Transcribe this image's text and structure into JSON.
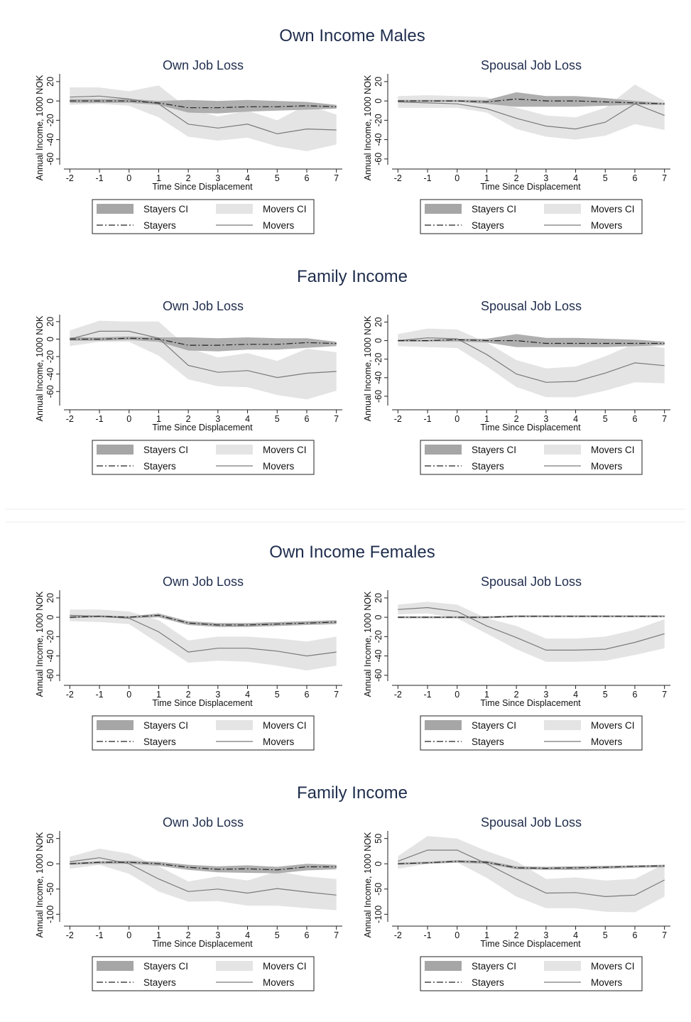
{
  "figure": {
    "group_titles": [
      "Own Income Males",
      "Family Income",
      "Own Income Females",
      "Family Income"
    ]
  },
  "legend": {
    "stayers_ci": "Stayers CI",
    "movers_ci": "Movers CI",
    "stayers": "Stayers",
    "movers": "Movers"
  },
  "colors": {
    "stayers_ci": "#a6a6a6",
    "movers_ci": "#e4e4e4",
    "stayers_line": "#222222",
    "movers_line": "#7a7a7a",
    "title": "#1f2d4d"
  },
  "chart_data": [
    {
      "type": "line",
      "group": "Own Income Males",
      "title": "Own Job Loss",
      "xlabel": "Time Since Displacement",
      "ylabel": "Annual Income, 1000 NOK",
      "x": [
        -2,
        -1,
        0,
        1,
        2,
        3,
        4,
        5,
        6,
        7
      ],
      "xlim": [
        -2.2,
        7.2
      ],
      "ylim": [
        -66,
        28
      ],
      "yticks": [
        20,
        0,
        -20,
        -40,
        -60
      ],
      "stayers": [
        0,
        0,
        0,
        -2,
        -7,
        -7,
        -6,
        -6,
        -5,
        -6
      ],
      "stayers_ci_low": [
        -2,
        -2,
        -2,
        -4,
        -12,
        -13,
        -11,
        -10,
        -9,
        -8
      ],
      "stayers_ci_high": [
        2,
        2,
        2,
        0,
        1,
        0,
        1,
        0,
        -1,
        -4
      ],
      "movers": [
        4,
        5,
        2,
        -3,
        -24,
        -28,
        -24,
        -34,
        -29,
        -30
      ],
      "movers_ci_low": [
        -4,
        -3,
        -5,
        -17,
        -37,
        -41,
        -38,
        -47,
        -52,
        -45
      ],
      "movers_ci_high": [
        14,
        14,
        10,
        16,
        -8,
        -16,
        -10,
        -20,
        -4,
        -14
      ],
      "grid": false,
      "legend_position": "bottom"
    },
    {
      "type": "line",
      "group": "Own Income Males",
      "title": "Spousal Job Loss",
      "xlabel": "Time Since Displacement",
      "ylabel": "Annual Income, 1000 NOK",
      "x": [
        -2,
        -1,
        0,
        1,
        2,
        3,
        4,
        5,
        6,
        7
      ],
      "xlim": [
        -2.2,
        7.2
      ],
      "ylim": [
        -66,
        28
      ],
      "yticks": [
        20,
        0,
        -20,
        -40,
        -60
      ],
      "stayers": [
        0,
        0,
        0,
        -1,
        2,
        0,
        0,
        -1,
        -2,
        -3
      ],
      "stayers_ci_low": [
        -1,
        -1,
        -1,
        -3,
        -6,
        -6,
        -6,
        -5,
        -4,
        -4
      ],
      "stayers_ci_high": [
        1,
        1,
        1,
        1,
        9,
        5,
        5,
        3,
        0,
        -2
      ],
      "movers": [
        -1,
        -2,
        -3,
        -8,
        -18,
        -26,
        -29,
        -22,
        -3,
        -15
      ],
      "movers_ci_low": [
        -7,
        -7,
        -7,
        -12,
        -29,
        -37,
        -40,
        -36,
        -24,
        -30
      ],
      "movers_ci_high": [
        5,
        6,
        5,
        4,
        -7,
        -15,
        -17,
        -7,
        17,
        0
      ],
      "grid": false,
      "legend_position": "bottom"
    },
    {
      "type": "line",
      "group": "Family Income",
      "title": "Own Job Loss",
      "xlabel": "Time Since Displacement",
      "ylabel": "Annual Income, 1000 NOK",
      "x": [
        -2,
        -1,
        0,
        1,
        2,
        3,
        4,
        5,
        6,
        7
      ],
      "xlim": [
        -2.2,
        7.2
      ],
      "ylim": [
        -76,
        28
      ],
      "yticks": [
        20,
        0,
        -20,
        -40,
        -60
      ],
      "stayers": [
        0,
        0,
        1,
        0,
        -7,
        -7,
        -6,
        -6,
        -4,
        -5
      ],
      "stayers_ci_low": [
        -2,
        -2,
        -1,
        -3,
        -13,
        -14,
        -12,
        -12,
        -10,
        -8
      ],
      "stayers_ci_high": [
        2,
        2,
        3,
        2,
        2,
        1,
        2,
        1,
        1,
        -3
      ],
      "movers": [
        0,
        9,
        9,
        1,
        -30,
        -38,
        -36,
        -44,
        -39,
        -37
      ],
      "movers_ci_low": [
        -8,
        -3,
        -3,
        -19,
        -46,
        -54,
        -55,
        -64,
        -69,
        -59
      ],
      "movers_ci_high": [
        10,
        21,
        20,
        20,
        -10,
        -21,
        -16,
        -25,
        -11,
        -15
      ],
      "grid": false,
      "legend_position": "bottom"
    },
    {
      "type": "line",
      "group": "Family Income",
      "title": "Spousal Job Loss",
      "xlabel": "Time Since Displacement",
      "ylabel": "Annual Income, 1000 NOK",
      "x": [
        -2,
        -1,
        0,
        1,
        2,
        3,
        4,
        5,
        6,
        7
      ],
      "xlim": [
        -2.2,
        7.2
      ],
      "ylim": [
        -70,
        28
      ],
      "yticks": [
        20,
        0,
        -20,
        -40,
        -60
      ],
      "stayers": [
        0,
        0,
        1,
        0,
        0,
        -3,
        -3,
        -3,
        -3,
        -3
      ],
      "stayers_ci_low": [
        -1,
        -1,
        -1,
        -2,
        -7,
        -7,
        -7,
        -7,
        -6,
        -5
      ],
      "stayers_ci_high": [
        1,
        1,
        2,
        2,
        7,
        3,
        3,
        2,
        1,
        -1
      ],
      "movers": [
        0,
        3,
        2,
        -15,
        -36,
        -45,
        -44,
        -35,
        -24,
        -27
      ],
      "movers_ci_low": [
        -6,
        -7,
        -8,
        -28,
        -50,
        -61,
        -61,
        -54,
        -45,
        -46
      ],
      "movers_ci_high": [
        7,
        13,
        12,
        -2,
        -21,
        -30,
        -28,
        -17,
        -3,
        -8
      ],
      "grid": false,
      "legend_position": "bottom"
    },
    {
      "type": "line",
      "group": "Own Income Females",
      "title": "Own Job Loss",
      "xlabel": "Time Since Displacement",
      "ylabel": "Annual Income, 1000 NOK",
      "x": [
        -2,
        -1,
        0,
        1,
        2,
        3,
        4,
        5,
        6,
        7
      ],
      "xlim": [
        -2.2,
        7.2
      ],
      "ylim": [
        -66,
        28
      ],
      "yticks": [
        20,
        0,
        -20,
        -40,
        -60
      ],
      "stayers": [
        0,
        1,
        0,
        2,
        -6,
        -8,
        -8,
        -7,
        -6,
        -5
      ],
      "stayers_ci_low": [
        -1,
        0,
        -1,
        0,
        -8,
        -10,
        -10,
        -9,
        -8,
        -7
      ],
      "stayers_ci_high": [
        1,
        2,
        1,
        4,
        -4,
        -6,
        -6,
        -5,
        -4,
        -3
      ],
      "movers": [
        2,
        1,
        -1,
        -15,
        -36,
        -32,
        -32,
        -35,
        -40,
        -36
      ],
      "movers_ci_low": [
        -4,
        -5,
        -7,
        -27,
        -47,
        -45,
        -46,
        -50,
        -55,
        -50
      ],
      "movers_ci_high": [
        8,
        8,
        6,
        -3,
        -24,
        -20,
        -20,
        -22,
        -25,
        -20
      ],
      "grid": false,
      "legend_position": "bottom"
    },
    {
      "type": "line",
      "group": "Own Income Females",
      "title": "Spousal Job Loss",
      "xlabel": "Time Since Displacement",
      "ylabel": "Annual Income, 1000 NOK",
      "x": [
        -2,
        -1,
        0,
        1,
        2,
        3,
        4,
        5,
        6,
        7
      ],
      "xlim": [
        -2.2,
        7.2
      ],
      "ylim": [
        -66,
        28
      ],
      "yticks": [
        20,
        0,
        -20,
        -40,
        -60
      ],
      "stayers": [
        0,
        0,
        0,
        0,
        1,
        1,
        1,
        1,
        1,
        1
      ],
      "stayers_ci_low": [
        -1,
        -1,
        -1,
        -1,
        0,
        0,
        0,
        0,
        0,
        0
      ],
      "stayers_ci_high": [
        1,
        1,
        1,
        1,
        2,
        2,
        2,
        2,
        2,
        2
      ],
      "movers": [
        8,
        10,
        6,
        -9,
        -21,
        -34,
        -34,
        -33,
        -26,
        -17
      ],
      "movers_ci_low": [
        3,
        4,
        -1,
        -17,
        -33,
        -46,
        -46,
        -45,
        -39,
        -32
      ],
      "movers_ci_high": [
        13,
        16,
        13,
        -1,
        -9,
        -22,
        -22,
        -20,
        -13,
        -2
      ],
      "grid": false,
      "legend_position": "bottom"
    },
    {
      "type": "line",
      "group": "Family Income",
      "title": "Own Job Loss",
      "xlabel": "Time Since Displacement",
      "ylabel": "Annual Income, 1000 NOK",
      "x": [
        -2,
        -1,
        0,
        1,
        2,
        3,
        4,
        5,
        6,
        7
      ],
      "xlim": [
        -2.2,
        7.2
      ],
      "ylim": [
        -115,
        65
      ],
      "yticks": [
        50,
        0,
        -50,
        -100
      ],
      "stayers": [
        0,
        3,
        3,
        0,
        -7,
        -11,
        -10,
        -12,
        -6,
        -6
      ],
      "stayers_ci_low": [
        -2,
        0,
        0,
        -4,
        -12,
        -17,
        -18,
        -19,
        -13,
        -11
      ],
      "stayers_ci_high": [
        2,
        5,
        6,
        4,
        -2,
        -5,
        -3,
        -6,
        0,
        -2
      ],
      "movers": [
        4,
        12,
        0,
        -30,
        -55,
        -50,
        -58,
        -49,
        -56,
        -62
      ],
      "movers_ci_low": [
        -10,
        -2,
        -20,
        -55,
        -75,
        -74,
        -83,
        -83,
        -88,
        -92
      ],
      "movers_ci_high": [
        14,
        30,
        20,
        -5,
        -35,
        -25,
        -33,
        -15,
        -25,
        -30
      ],
      "grid": false,
      "legend_position": "bottom"
    },
    {
      "type": "line",
      "group": "Family Income",
      "title": "Spousal Job Loss",
      "xlabel": "Time Since Displacement",
      "ylabel": "Annual Income, 1000 NOK",
      "x": [
        -2,
        -1,
        0,
        1,
        2,
        3,
        4,
        5,
        6,
        7
      ],
      "xlim": [
        -2.2,
        7.2
      ],
      "ylim": [
        -115,
        65
      ],
      "yticks": [
        50,
        0,
        -50,
        -100
      ],
      "stayers": [
        0,
        2,
        5,
        3,
        -8,
        -9,
        -8,
        -7,
        -5,
        -4
      ],
      "stayers_ci_low": [
        -2,
        0,
        2,
        0,
        -11,
        -12,
        -12,
        -10,
        -8,
        -7
      ],
      "stayers_ci_high": [
        2,
        4,
        7,
        6,
        -5,
        -6,
        -5,
        -4,
        -3,
        -2
      ],
      "movers": [
        5,
        27,
        27,
        0,
        -30,
        -58,
        -57,
        -65,
        -62,
        -32
      ],
      "movers_ci_low": [
        -10,
        0,
        3,
        -28,
        -65,
        -88,
        -88,
        -95,
        -96,
        -65
      ],
      "movers_ci_high": [
        15,
        55,
        50,
        25,
        5,
        -30,
        -27,
        -33,
        -30,
        0
      ],
      "grid": false,
      "legend_position": "bottom"
    }
  ]
}
